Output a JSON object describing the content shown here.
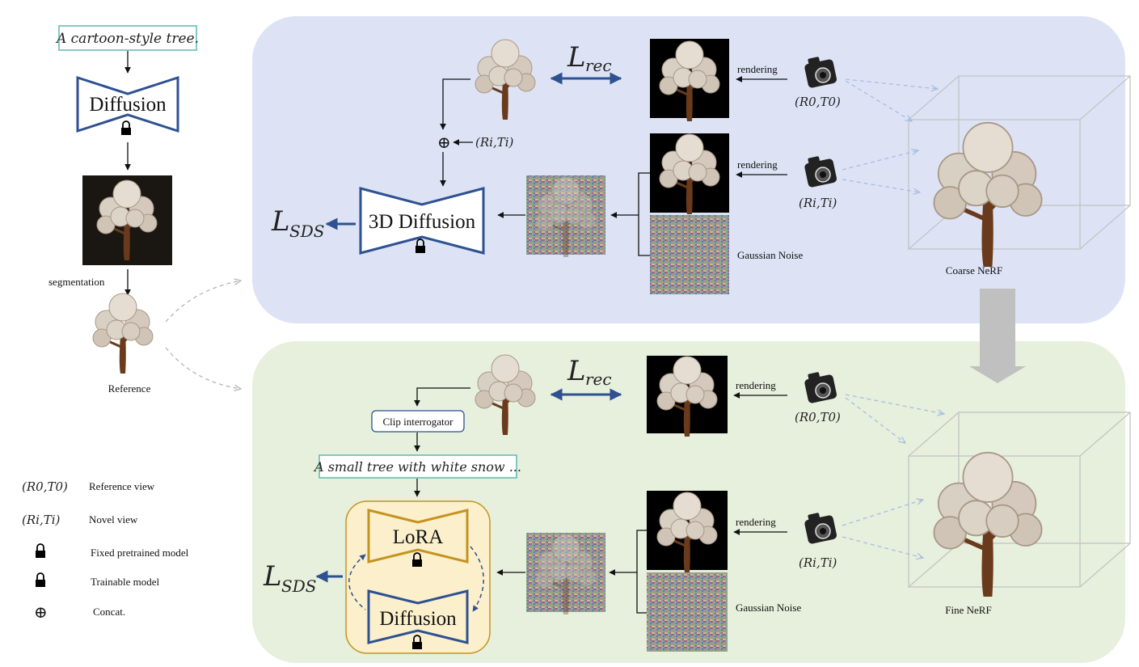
{
  "left": {
    "prompt": "A cartoon-style tree.",
    "diffusion_label": "Diffusion",
    "segmentation_label": "segmentation",
    "reference_label": "Reference"
  },
  "coarse": {
    "l_rec_main": "L",
    "l_rec_sub": "rec",
    "rendering_top": "rendering",
    "rendering_mid": "rendering",
    "r0t0": "(R0,T0)",
    "riti_cam": "(Ri,Ti)",
    "riti_concat": "(Ri,Ti)",
    "gaussian_noise": "Gaussian Noise",
    "diffusion3d_label": "3D Diffusion",
    "l_sds_main": "L",
    "l_sds_sub": "SDS",
    "nerf_label": "Coarse NeRF"
  },
  "fine": {
    "l_rec_main": "L",
    "l_rec_sub": "rec",
    "clip_label": "Clip interrogator",
    "caption": "A small tree with white snow ...",
    "lora_label": "LoRA",
    "diffusion_label": "Diffusion",
    "l_sds_main": "L",
    "l_sds_sub": "SDS",
    "rendering_top": "rendering",
    "rendering_bottom": "rendering",
    "r0t0": "(R0,T0)",
    "riti": "(Ri,Ti)",
    "gaussian_noise": "Gaussian Noise",
    "nerf_label": "Fine NeRF"
  },
  "legend": {
    "r0t0": "(R0,T0)",
    "r0t0_desc": "Reference view",
    "riti": "(Ri,Ti)",
    "riti_desc": "Novel view",
    "fixed_desc": "Fixed pretrained model",
    "trainable_desc": "Trainable model",
    "concat_symbol": "⊕",
    "concat_desc": "Concat."
  },
  "colors": {
    "coarse_panel": "#dde3f5",
    "fine_panel": "#e6f0dc",
    "diffusion_blue": "#2e5191",
    "lora_gold": "#c4931f",
    "lora_bg": "#fbefcc",
    "prompt_border": "#5bb9b0"
  }
}
